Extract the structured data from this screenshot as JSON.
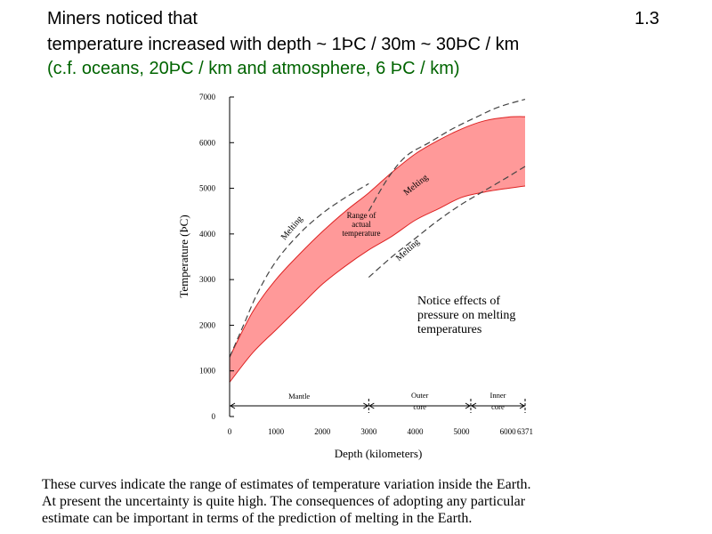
{
  "slide": {
    "number": "1.3",
    "title_line1": "Miners noticed that",
    "title_line2": "temperature increased with depth  ~ 1ÞC    / 30m   ~ 30ÞC / km",
    "subtitle": "(c.f. oceans, 20ÞC / km and atmosphere, 6 ÞC / km)",
    "caption": [
      "These curves indicate the range of estimates of temperature variation inside the Earth.",
      "At present the uncertainty is quite high. The consequences of adopting any particular",
      "estimate can be important in terms of the prediction of melting in the Earth."
    ]
  },
  "colors": {
    "band_fill": "#ff9999",
    "band_edge": "#dd2222",
    "melting_curve": "#444444",
    "subtitle": "#006400"
  },
  "chart_data": {
    "type": "area",
    "xlabel": "Depth (kilometers)",
    "ylabel": "Temperature (ÞC)",
    "xlim": [
      0,
      6371
    ],
    "ylim": [
      0,
      7000
    ],
    "xticks": [
      "0",
      "1000",
      "2000",
      "3000",
      "4000",
      "5000",
      "6000",
      "6371"
    ],
    "x_tick_values": [
      0,
      1000,
      2000,
      3000,
      4000,
      5000,
      6000,
      6371
    ],
    "yticks": [
      "0",
      "1000",
      "2000",
      "3000",
      "4000",
      "5000",
      "6000",
      "7000"
    ],
    "y_tick_values": [
      0,
      1000,
      2000,
      3000,
      4000,
      5000,
      6000,
      7000
    ],
    "grid": false,
    "band_label": "Range of\nactual\ntemperature",
    "band": {
      "x": [
        0,
        500,
        1000,
        1500,
        2000,
        2500,
        3000,
        3500,
        4000,
        4500,
        5000,
        5500,
        6000,
        6371
      ],
      "upper": [
        1300,
        2300,
        3000,
        3550,
        4050,
        4500,
        4900,
        5350,
        5750,
        6050,
        6300,
        6480,
        6560,
        6570
      ],
      "lower": [
        750,
        1400,
        1900,
        2400,
        2900,
        3300,
        3650,
        3950,
        4300,
        4550,
        4800,
        4920,
        5000,
        5050
      ]
    },
    "melting_curves": [
      {
        "label": "Melting",
        "x": [
          0,
          300,
          600,
          1000,
          1500,
          2000,
          2500,
          3000
        ],
        "y": [
          1300,
          2000,
          2700,
          3400,
          4000,
          4450,
          4800,
          5100
        ]
      },
      {
        "label": "Melting",
        "x": [
          3000,
          3400,
          3800,
          4300,
          4800,
          5300,
          5800,
          6371
        ],
        "y": [
          4500,
          5200,
          5700,
          6000,
          6300,
          6550,
          6780,
          6950
        ]
      },
      {
        "label": "Melting",
        "x": [
          3000,
          3500,
          4000,
          4500,
          5000,
          5500,
          6000,
          6371
        ],
        "y": [
          3050,
          3500,
          3900,
          4300,
          4650,
          4950,
          5250,
          5480
        ]
      }
    ],
    "annotations": [
      "Notice effects of\npressure on melting\ntemperatures"
    ],
    "regions": [
      {
        "label": "Mantle",
        "from": 0,
        "to": 3000
      },
      {
        "label": "Outer\ncore",
        "from": 3000,
        "to": 5200
      },
      {
        "label": "Inner\ncore",
        "from": 5200,
        "to": 6371
      }
    ]
  }
}
